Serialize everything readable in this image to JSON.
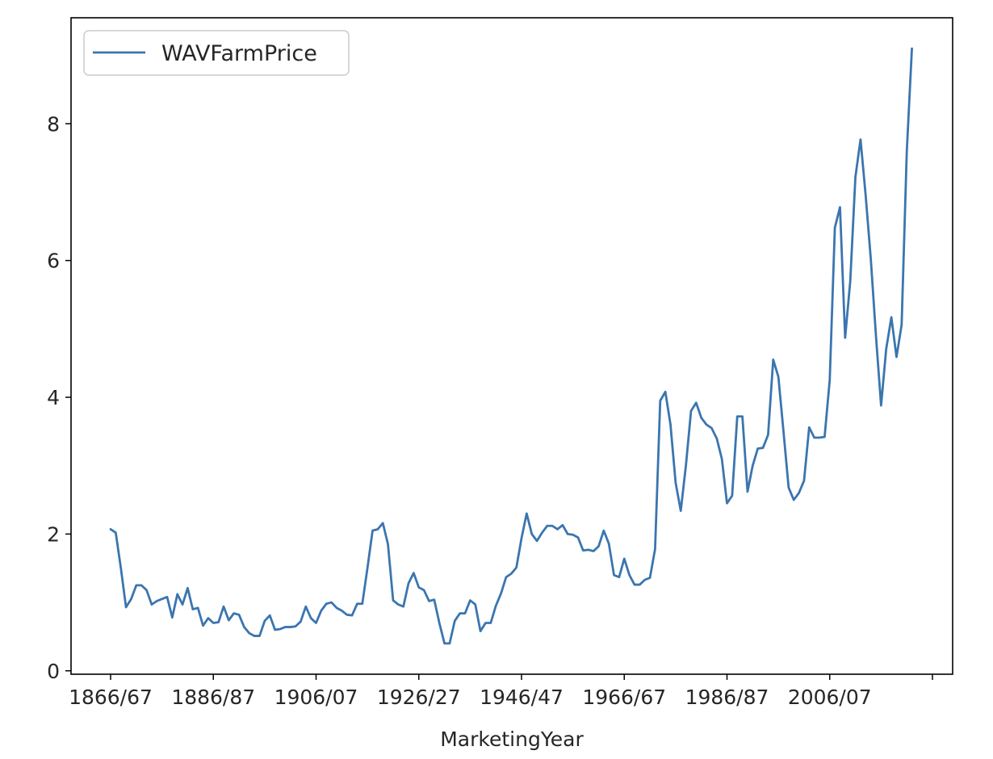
{
  "chart_data": {
    "type": "line",
    "title": "",
    "xlabel": "MarketingYear",
    "ylabel": "",
    "ylim": [
      -0.05,
      9.55
    ],
    "yticks": [
      0,
      2,
      4,
      6,
      8
    ],
    "xtick_labels": [
      "1866/67",
      "1886/87",
      "1906/07",
      "1926/27",
      "1946/47",
      "1966/67",
      "1986/87",
      "2006/07",
      ""
    ],
    "x_start_year": 1866,
    "legend": {
      "position": "upper-left",
      "entries": [
        "WAVFarmPrice"
      ]
    },
    "grid": false,
    "colors": {
      "series": "#3b75af",
      "axes": "#000000",
      "text": "#262626"
    },
    "series": [
      {
        "name": "WAVFarmPrice",
        "values": [
          2.07,
          2.02,
          1.5,
          0.93,
          1.05,
          1.25,
          1.25,
          1.18,
          0.97,
          1.02,
          1.05,
          1.08,
          0.78,
          1.12,
          0.97,
          1.21,
          0.9,
          0.92,
          0.66,
          0.77,
          0.7,
          0.71,
          0.94,
          0.74,
          0.84,
          0.82,
          0.64,
          0.55,
          0.51,
          0.51,
          0.73,
          0.81,
          0.6,
          0.61,
          0.64,
          0.64,
          0.65,
          0.72,
          0.94,
          0.77,
          0.7,
          0.88,
          0.98,
          1.0,
          0.92,
          0.88,
          0.82,
          0.81,
          0.98,
          0.98,
          1.5,
          2.05,
          2.07,
          2.16,
          1.85,
          1.03,
          0.97,
          0.94,
          1.28,
          1.43,
          1.22,
          1.18,
          1.02,
          1.04,
          0.7,
          0.4,
          0.4,
          0.73,
          0.84,
          0.84,
          1.03,
          0.97,
          0.58,
          0.7,
          0.7,
          0.95,
          1.13,
          1.37,
          1.42,
          1.51,
          1.94,
          2.3,
          2.0,
          1.9,
          2.02,
          2.12,
          2.12,
          2.07,
          2.13,
          2.0,
          1.99,
          1.95,
          1.76,
          1.77,
          1.75,
          1.82,
          2.05,
          1.86,
          1.4,
          1.37,
          1.64,
          1.4,
          1.26,
          1.26,
          1.33,
          1.36,
          1.78,
          3.95,
          4.08,
          3.6,
          2.75,
          2.34,
          3.0,
          3.8,
          3.92,
          3.7,
          3.6,
          3.55,
          3.4,
          3.1,
          2.45,
          2.56,
          3.72,
          3.72,
          2.62,
          3.0,
          3.25,
          3.26,
          3.45,
          4.55,
          4.3,
          3.5,
          2.68,
          2.5,
          2.6,
          2.78,
          3.56,
          3.41,
          3.41,
          3.42,
          4.25,
          6.48,
          6.78,
          4.87,
          5.7,
          7.22,
          7.77,
          6.95,
          6.02,
          4.9,
          3.88,
          4.71,
          5.17,
          4.59,
          5.06,
          7.59,
          9.1
        ]
      }
    ]
  }
}
